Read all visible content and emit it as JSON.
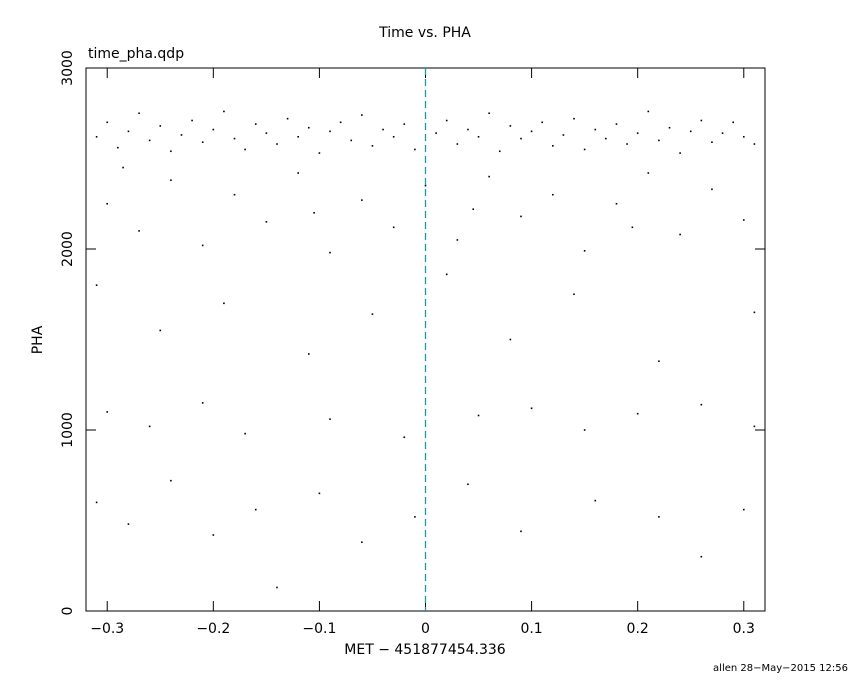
{
  "chart_data": {
    "type": "scatter",
    "title": "Time vs. PHA",
    "subtitle": "time_pha.qdp",
    "xlabel": "MET − 451877454.336",
    "ylabel": "PHA",
    "footer": "allen 28−May−2015 12:56",
    "color": "#000000",
    "vline": {
      "x": 0,
      "color": "#1a9aa8"
    },
    "xlim": [
      -0.32,
      0.32
    ],
    "ylim": [
      0,
      3000
    ],
    "xticks": [
      {
        "value": -0.3,
        "label": "−0.3"
      },
      {
        "value": -0.2,
        "label": "−0.2"
      },
      {
        "value": -0.1,
        "label": "−0.1"
      },
      0,
      0.1,
      0.2,
      0.3
    ],
    "yticks": [
      0,
      1000,
      2000,
      3000
    ],
    "x": [
      -0.31,
      -0.3,
      -0.29,
      -0.28,
      -0.27,
      -0.26,
      -0.25,
      -0.24,
      -0.23,
      -0.22,
      -0.21,
      -0.2,
      -0.19,
      -0.18,
      -0.17,
      -0.16,
      -0.15,
      -0.14,
      -0.13,
      -0.12,
      -0.11,
      -0.1,
      -0.09,
      -0.08,
      -0.07,
      -0.06,
      -0.05,
      -0.04,
      -0.03,
      -0.02,
      -0.01,
      0.01,
      0.02,
      0.03,
      0.04,
      0.05,
      0.06,
      0.07,
      0.08,
      0.09,
      0.1,
      0.11,
      0.12,
      0.13,
      0.14,
      0.15,
      0.16,
      0.17,
      0.18,
      0.19,
      0.2,
      0.21,
      0.22,
      0.23,
      0.24,
      0.25,
      0.26,
      0.27,
      0.28,
      0.29,
      0.3,
      0.31,
      -0.3,
      -0.27,
      -0.24,
      -0.21,
      -0.18,
      -0.15,
      -0.12,
      -0.09,
      -0.06,
      -0.03,
      0.0,
      0.03,
      0.06,
      0.09,
      0.12,
      0.15,
      0.18,
      0.21,
      0.24,
      0.27,
      0.3,
      -0.285,
      0.045,
      0.195,
      -0.105,
      -0.31,
      -0.25,
      -0.19,
      -0.11,
      -0.05,
      0.02,
      0.08,
      0.14,
      0.22,
      0.31,
      -0.3,
      -0.26,
      -0.21,
      -0.17,
      -0.09,
      -0.02,
      0.05,
      0.1,
      0.15,
      0.2,
      0.26,
      0.31,
      -0.31,
      -0.28,
      -0.24,
      -0.2,
      -0.16,
      -0.14,
      -0.1,
      -0.06,
      -0.01,
      0.04,
      0.09,
      0.16,
      0.22,
      0.26,
      0.3
    ],
    "y": [
      2620,
      2700,
      2560,
      2650,
      2750,
      2600,
      2680,
      2540,
      2630,
      2710,
      2590,
      2660,
      2760,
      2610,
      2550,
      2690,
      2640,
      2580,
      2720,
      2620,
      2670,
      2530,
      2650,
      2700,
      2600,
      2740,
      2570,
      2660,
      2620,
      2690,
      2550,
      2640,
      2710,
      2580,
      2660,
      2620,
      2750,
      2540,
      2680,
      2610,
      2650,
      2700,
      2570,
      2630,
      2720,
      2550,
      2660,
      2610,
      2690,
      2580,
      2640,
      2760,
      2600,
      2670,
      2530,
      2650,
      2710,
      2590,
      2640,
      2700,
      2620,
      2580,
      2250,
      2100,
      2380,
      2020,
      2300,
      2150,
      2420,
      1980,
      2270,
      2120,
      2350,
      2050,
      2400,
      2180,
      2300,
      1990,
      2250,
      2420,
      2080,
      2330,
      2160,
      2450,
      2220,
      2120,
      2200,
      1800,
      1550,
      1700,
      1420,
      1640,
      1860,
      1500,
      1750,
      1380,
      1650,
      1100,
      1020,
      1150,
      980,
      1060,
      960,
      1080,
      1120,
      1000,
      1090,
      1140,
      1020,
      600,
      480,
      720,
      420,
      560,
      130,
      650,
      380,
      520,
      700,
      440,
      610,
      520,
      300,
      560
    ]
  }
}
